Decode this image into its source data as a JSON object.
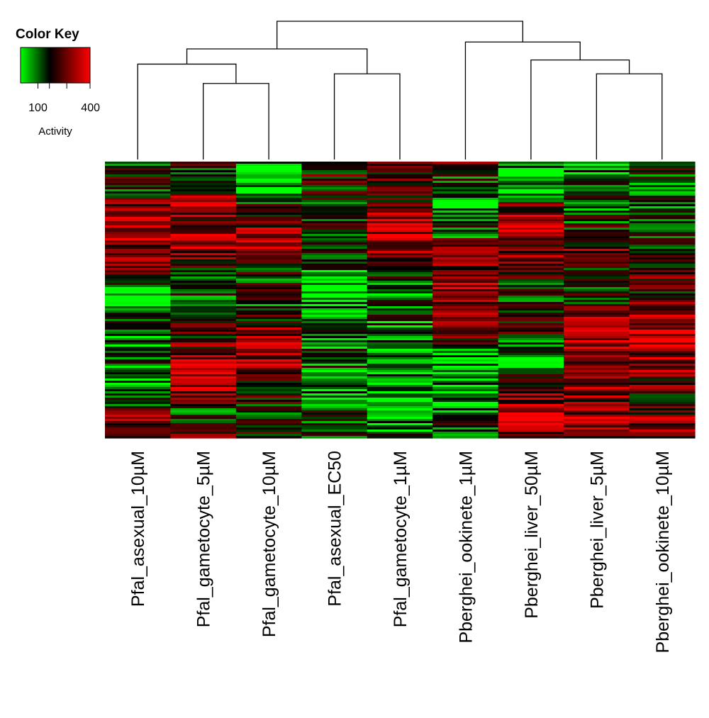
{
  "chart_data": {
    "type": "heatmap",
    "title": "",
    "columns": [
      "Pfal_asexual_10µM",
      "Pfal_gametocyte_5µM",
      "Pfal_gametocyte_10µM",
      "Pfal_asexual_EC50",
      "Pfal_gametocyte_1µM",
      "Pberghei_ookinete_1µM",
      "Pberghei_liver_50µM",
      "Pberghei_liver_5µM",
      "Pberghei_ookinete_10µM"
    ],
    "row_count": 130,
    "value_range": [
      0,
      400
    ],
    "color_key": {
      "title": "Color Key",
      "label": "Activity",
      "ticks": [
        {
          "value": 100,
          "label": "100"
        },
        {
          "value": 400,
          "label": "400"
        }
      ],
      "unlabeled_ticks": [
        166,
        266
      ],
      "colors": {
        "low": "#00ff00",
        "mid": "#000000",
        "high": "#ff0000"
      },
      "midpoint": 166
    },
    "dendrogram": {
      "leaf_order": [
        0,
        1,
        2,
        3,
        4,
        5,
        6,
        7,
        8
      ],
      "merges": [
        {
          "left": 1,
          "right": 2,
          "height": 0.55
        },
        {
          "left": 3,
          "right": 4,
          "height": 0.62
        },
        {
          "left": 7,
          "right": 8,
          "height": 0.62
        },
        {
          "left": 0,
          "right": -1,
          "height": 0.69
        },
        {
          "left": 6,
          "right": -3,
          "height": 0.72
        },
        {
          "left": -4,
          "right": -2,
          "height": 0.8
        },
        {
          "left": 5,
          "right": -5,
          "height": 0.85
        },
        {
          "left": -6,
          "right": -7,
          "height": 1.0
        }
      ]
    },
    "column_profiles": [
      [
        80,
        200,
        120,
        300,
        290,
        330,
        210,
        330,
        180,
        40,
        20,
        210,
        60,
        120,
        80,
        90,
        110,
        200,
        300,
        180
      ],
      [
        180,
        130,
        220,
        330,
        260,
        330,
        300,
        190,
        100,
        160,
        90,
        180,
        210,
        250,
        310,
        330,
        320,
        120,
        140,
        250
      ],
      [
        90,
        50,
        40,
        180,
        230,
        310,
        270,
        200,
        160,
        140,
        120,
        220,
        280,
        310,
        330,
        230,
        200,
        180,
        170,
        230
      ],
      [
        210,
        200,
        170,
        150,
        180,
        150,
        110,
        90,
        50,
        20,
        60,
        90,
        110,
        100,
        120,
        110,
        90,
        130,
        150,
        110
      ],
      [
        260,
        230,
        210,
        230,
        330,
        310,
        290,
        210,
        130,
        90,
        110,
        90,
        70,
        60,
        40,
        40,
        60,
        50,
        70,
        90
      ],
      [
        260,
        130,
        80,
        60,
        100,
        120,
        250,
        260,
        330,
        320,
        310,
        330,
        240,
        110,
        70,
        60,
        90,
        70,
        150,
        160
      ],
      [
        110,
        60,
        40,
        240,
        330,
        330,
        230,
        280,
        200,
        120,
        140,
        230,
        160,
        110,
        80,
        210,
        280,
        300,
        330,
        250
      ],
      [
        50,
        90,
        110,
        120,
        140,
        190,
        260,
        220,
        150,
        180,
        210,
        330,
        330,
        300,
        230,
        290,
        280,
        260,
        330,
        230
      ],
      [
        220,
        150,
        130,
        120,
        160,
        110,
        130,
        190,
        250,
        200,
        240,
        300,
        340,
        280,
        310,
        250,
        210,
        240,
        300,
        220
      ]
    ]
  }
}
